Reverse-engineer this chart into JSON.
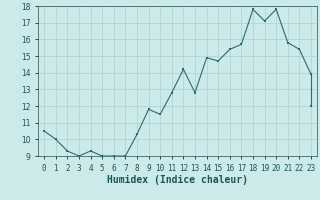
{
  "x": [
    0,
    1,
    2,
    3,
    4,
    5,
    6,
    7,
    8,
    9,
    10,
    11,
    12,
    13,
    14,
    15,
    16,
    17,
    18,
    19,
    20,
    21,
    22,
    23
  ],
  "y": [
    10.5,
    10.0,
    9.3,
    9.0,
    9.3,
    9.0,
    9.0,
    9.0,
    10.3,
    11.8,
    11.5,
    12.8,
    14.2,
    12.8,
    14.9,
    14.7,
    15.4,
    15.7,
    17.8,
    17.1,
    17.8,
    15.8,
    15.4,
    13.9
  ],
  "extra_x": 23,
  "extra_y": 12.0,
  "xlabel": "Humidex (Indice chaleur)",
  "ylim": [
    9,
    18
  ],
  "xlim_min": -0.5,
  "xlim_max": 23.5,
  "yticks": [
    9,
    10,
    11,
    12,
    13,
    14,
    15,
    16,
    17,
    18
  ],
  "xtick_labels": [
    "0",
    "1",
    "2",
    "3",
    "4",
    "5",
    "6",
    "7",
    "8",
    "9",
    "10",
    "11",
    "12",
    "13",
    "14",
    "15",
    "16",
    "17",
    "18",
    "19",
    "20",
    "21",
    "22",
    "23"
  ],
  "line_color": "#2e6b6b",
  "bg_color": "#cceaea",
  "grid_color": "#aad0d0",
  "text_color": "#1a5555",
  "tick_fontsize": 5.5,
  "xlabel_fontsize": 7.0
}
